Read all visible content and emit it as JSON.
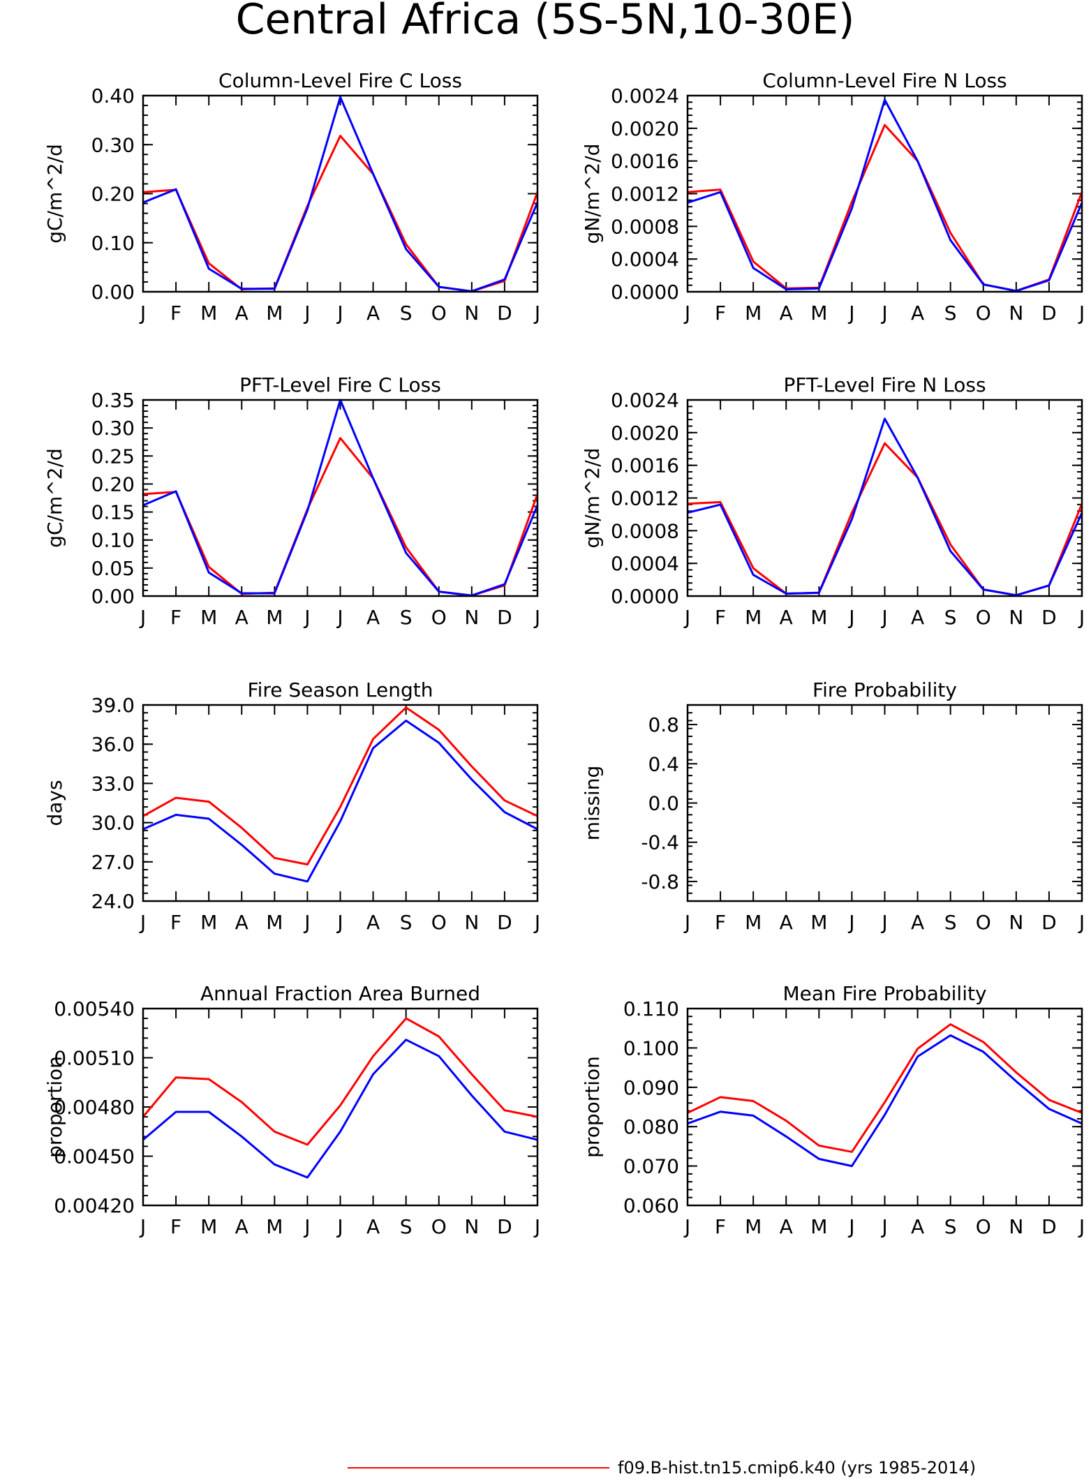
{
  "figure": {
    "title": "Central Africa (5S-5N,10-30E)",
    "legend_label": "f09.B-hist.tn15.cmip6.k40 (yrs 1985-2014)"
  },
  "colors": {
    "series_a": "#ff0000",
    "series_b": "#0000ff",
    "axis": "#000000"
  },
  "chart_data": [
    {
      "type": "line",
      "title": "Column-Level Fire C Loss",
      "ylabel": "gC/m^2/d",
      "categories": [
        "J",
        "F",
        "M",
        "A",
        "M",
        "J",
        "J",
        "A",
        "S",
        "O",
        "N",
        "D",
        "J"
      ],
      "ylim": [
        0,
        0.4
      ],
      "yticks": [
        0,
        0.1,
        0.2,
        0.3,
        0.4
      ],
      "yticklabels": [
        "0.00",
        "0.10",
        "0.20",
        "0.30",
        "0.40"
      ],
      "series": [
        {
          "values": [
            0.203,
            0.208,
            0.058,
            0.005,
            0.007,
            0.175,
            0.318,
            0.24,
            0.097,
            0.01,
            0.001,
            0.022,
            0.203
          ]
        },
        {
          "values": [
            0.182,
            0.209,
            0.047,
            0.006,
            0.006,
            0.17,
            0.397,
            0.24,
            0.087,
            0.01,
            0.001,
            0.025,
            0.182
          ]
        }
      ]
    },
    {
      "type": "line",
      "title": "Column-Level Fire N Loss",
      "ylabel": "gN/m^2/d",
      "categories": [
        "J",
        "F",
        "M",
        "A",
        "M",
        "J",
        "J",
        "A",
        "S",
        "O",
        "N",
        "D",
        "J"
      ],
      "ylim": [
        0,
        0.0024
      ],
      "yticks": [
        0,
        0.0004,
        0.0008,
        0.0012,
        0.0016,
        0.002,
        0.0024
      ],
      "yticklabels": [
        "0.0000",
        "0.0004",
        "0.0008",
        "0.0012",
        "0.0016",
        "0.0020",
        "0.0024"
      ],
      "series": [
        {
          "values": [
            0.00122,
            0.00125,
            0.00037,
            4e-05,
            5e-05,
            0.0011,
            0.00204,
            0.0016,
            0.00072,
            9e-05,
            1e-05,
            0.00015,
            0.00122
          ]
        },
        {
          "values": [
            0.00109,
            0.00122,
            0.00029,
            3e-05,
            4e-05,
            0.00102,
            0.00235,
            0.0016,
            0.00063,
            9e-05,
            1e-05,
            0.00014,
            0.00109
          ]
        }
      ]
    },
    {
      "type": "line",
      "title": "PFT-Level Fire C Loss",
      "ylabel": "gC/m^2/d",
      "categories": [
        "J",
        "F",
        "M",
        "A",
        "M",
        "J",
        "J",
        "A",
        "S",
        "O",
        "N",
        "D",
        "J"
      ],
      "ylim": [
        0,
        0.35
      ],
      "yticks": [
        0,
        0.05,
        0.1,
        0.15,
        0.2,
        0.25,
        0.3,
        0.35
      ],
      "yticklabels": [
        "0.00",
        "0.05",
        "0.10",
        "0.15",
        "0.20",
        "0.25",
        "0.30",
        "0.35"
      ],
      "series": [
        {
          "values": [
            0.182,
            0.186,
            0.052,
            0.004,
            0.006,
            0.155,
            0.282,
            0.21,
            0.087,
            0.008,
            0.001,
            0.019,
            0.182
          ]
        },
        {
          "values": [
            0.162,
            0.187,
            0.042,
            0.005,
            0.005,
            0.152,
            0.35,
            0.21,
            0.077,
            0.008,
            0.001,
            0.021,
            0.162
          ]
        }
      ]
    },
    {
      "type": "line",
      "title": "PFT-Level Fire N Loss",
      "ylabel": "gN/m^2/d",
      "categories": [
        "J",
        "F",
        "M",
        "A",
        "M",
        "J",
        "J",
        "A",
        "S",
        "O",
        "N",
        "D",
        "J"
      ],
      "ylim": [
        0,
        0.0024
      ],
      "yticks": [
        0,
        0.0004,
        0.0008,
        0.0012,
        0.0016,
        0.002,
        0.0024
      ],
      "yticklabels": [
        "0.0000",
        "0.0004",
        "0.0008",
        "0.0012",
        "0.0016",
        "0.0020",
        "0.0024"
      ],
      "series": [
        {
          "values": [
            0.00113,
            0.00115,
            0.00034,
            3e-05,
            4e-05,
            0.00102,
            0.00187,
            0.00145,
            0.00063,
            8e-05,
            1e-05,
            0.00013,
            0.00113
          ]
        },
        {
          "values": [
            0.00102,
            0.00112,
            0.00026,
            3e-05,
            4e-05,
            0.00094,
            0.00217,
            0.00145,
            0.00055,
            8e-05,
            1e-05,
            0.00013,
            0.00102
          ]
        }
      ]
    },
    {
      "type": "line",
      "title": "Fire Season Length",
      "ylabel": "days",
      "categories": [
        "J",
        "F",
        "M",
        "A",
        "M",
        "J",
        "J",
        "A",
        "S",
        "O",
        "N",
        "D",
        "J"
      ],
      "ylim": [
        24,
        39
      ],
      "yticks": [
        24,
        27,
        30,
        33,
        36,
        39
      ],
      "yticklabels": [
        "24.0",
        "27.0",
        "30.0",
        "33.0",
        "36.0",
        "39.0"
      ],
      "series": [
        {
          "values": [
            30.5,
            31.9,
            31.6,
            29.6,
            27.3,
            26.8,
            31.2,
            36.4,
            38.8,
            37.1,
            34.3,
            31.7,
            30.5
          ]
        },
        {
          "values": [
            29.5,
            30.6,
            30.3,
            28.3,
            26.1,
            25.5,
            30.1,
            35.7,
            37.8,
            36.1,
            33.3,
            30.8,
            29.5
          ]
        }
      ]
    },
    {
      "type": "line",
      "title": "Fire Probability",
      "ylabel": "missing",
      "categories": [
        "J",
        "F",
        "M",
        "A",
        "M",
        "J",
        "J",
        "A",
        "S",
        "O",
        "N",
        "D",
        "J"
      ],
      "ylim": [
        -1,
        1
      ],
      "yticks": [
        -0.8,
        -0.4,
        0,
        0.4,
        0.8
      ],
      "yticklabels": [
        "-0.8",
        "-0.4",
        "0.0",
        "0.4",
        "0.8"
      ],
      "series": []
    },
    {
      "type": "line",
      "title": "Annual Fraction Area Burned",
      "ylabel": "proportion",
      "categories": [
        "J",
        "F",
        "M",
        "A",
        "M",
        "J",
        "J",
        "A",
        "S",
        "O",
        "N",
        "D",
        "J"
      ],
      "ylim": [
        0.0042,
        0.0054
      ],
      "yticks": [
        0.0042,
        0.0045,
        0.0048,
        0.0051,
        0.0054
      ],
      "yticklabels": [
        "0.00420",
        "0.00450",
        "0.00480",
        "0.00510",
        "0.00540"
      ],
      "series": [
        {
          "values": [
            0.00474,
            0.00498,
            0.00497,
            0.00483,
            0.00465,
            0.00457,
            0.00481,
            0.00511,
            0.00534,
            0.00523,
            0.005,
            0.00478,
            0.00474
          ]
        },
        {
          "values": [
            0.0046,
            0.00477,
            0.00477,
            0.00462,
            0.00445,
            0.00437,
            0.00465,
            0.005,
            0.00521,
            0.00511,
            0.00487,
            0.00465,
            0.0046
          ]
        }
      ]
    },
    {
      "type": "line",
      "title": "Mean Fire Probability",
      "ylabel": "proportion",
      "categories": [
        "J",
        "F",
        "M",
        "A",
        "M",
        "J",
        "J",
        "A",
        "S",
        "O",
        "N",
        "D",
        "J"
      ],
      "ylim": [
        0.06,
        0.11
      ],
      "yticks": [
        0.06,
        0.07,
        0.08,
        0.09,
        0.1,
        0.11
      ],
      "yticklabels": [
        "0.060",
        "0.070",
        "0.080",
        "0.090",
        "0.100",
        "0.110"
      ],
      "series": [
        {
          "values": [
            0.0835,
            0.0875,
            0.0865,
            0.0815,
            0.0752,
            0.0736,
            0.0862,
            0.0998,
            0.106,
            0.1015,
            0.0938,
            0.0868,
            0.0835
          ]
        },
        {
          "values": [
            0.0808,
            0.0838,
            0.0828,
            0.0775,
            0.0718,
            0.07,
            0.083,
            0.0978,
            0.1032,
            0.099,
            0.0915,
            0.0845,
            0.0808
          ]
        }
      ]
    }
  ]
}
